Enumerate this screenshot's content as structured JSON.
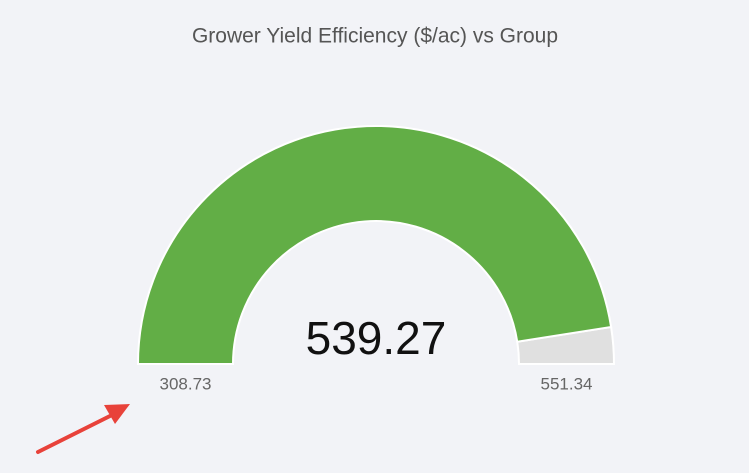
{
  "chart_data": {
    "type": "gauge",
    "title": "Grower Yield Efficiency ($/ac) vs Group",
    "value": 539.27,
    "ylim": [
      308.73,
      551.34
    ],
    "color": "#62ae46",
    "track_color": "#e0e0e0"
  }
}
